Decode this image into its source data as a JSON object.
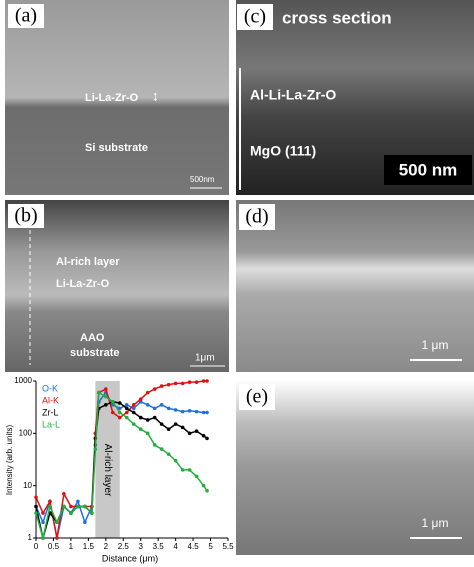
{
  "panels": {
    "a": {
      "label": "(a)",
      "layer": "Li-La-Zr-O",
      "substrate": "Si substrate",
      "scale": "500nm"
    },
    "c": {
      "label": "(c)",
      "title": "cross section",
      "layer": "Al-Li-La-Zr-O",
      "substrate": "MgO (111)",
      "scale": "500 nm"
    },
    "b": {
      "label": "(b)",
      "layer1": "Al-rich layer",
      "layer2": "Li-La-Zr-O",
      "substrate1": "AAO",
      "substrate2": "substrate",
      "scale": "1μm"
    },
    "d": {
      "label": "(d)",
      "scale": "1 μm"
    },
    "e": {
      "label": "(e)",
      "scale": "1 μm"
    }
  },
  "chart_data": {
    "type": "line",
    "x_label": "Distance (μm)",
    "y_label": "Intensity (arb. units)",
    "x": [
      0,
      0.2,
      0.4,
      0.6,
      0.8,
      1.0,
      1.2,
      1.4,
      1.6,
      1.7,
      1.8,
      2.0,
      2.2,
      2.4,
      2.6,
      2.8,
      3.0,
      3.2,
      3.4,
      3.6,
      3.8,
      4.0,
      4.2,
      4.4,
      4.6,
      4.8,
      4.9
    ],
    "series": [
      {
        "name": "O-K",
        "color": "#1f6fe0",
        "values": [
          4,
          2,
          5,
          1,
          4,
          3,
          5,
          2,
          4,
          60,
          400,
          600,
          350,
          300,
          350,
          300,
          400,
          350,
          300,
          350,
          300,
          280,
          260,
          270,
          260,
          250,
          250
        ]
      },
      {
        "name": "Al-K",
        "color": "#e01010",
        "values": [
          6,
          3,
          5,
          1,
          7,
          4,
          4,
          4,
          4,
          100,
          600,
          700,
          250,
          200,
          250,
          350,
          450,
          600,
          700,
          800,
          850,
          900,
          900,
          950,
          950,
          1000,
          1000
        ]
      },
      {
        "name": "Zr-L",
        "color": "#000000",
        "values": [
          4,
          1,
          3,
          2,
          4,
          3,
          4,
          4,
          3,
          80,
          300,
          350,
          400,
          380,
          300,
          250,
          200,
          180,
          200,
          150,
          120,
          150,
          130,
          100,
          110,
          90,
          80
        ]
      },
      {
        "name": "La-L",
        "color": "#20b040",
        "values": [
          3,
          1,
          4,
          2,
          4,
          3,
          4,
          4,
          3,
          50,
          600,
          500,
          400,
          250,
          200,
          150,
          120,
          100,
          60,
          50,
          40,
          30,
          20,
          20,
          15,
          10,
          8
        ]
      }
    ],
    "shade": {
      "range": [
        1.7,
        2.4
      ],
      "label": "Al-rich layer"
    },
    "xlim": [
      0,
      5.5
    ],
    "xticks": [
      0,
      0.5,
      1,
      1.5,
      2,
      2.5,
      3,
      3.5,
      4,
      4.5,
      5,
      5.5
    ],
    "ylim": [
      1,
      1000
    ],
    "yticks": [
      1,
      10,
      100,
      1000
    ],
    "log_y": true
  }
}
